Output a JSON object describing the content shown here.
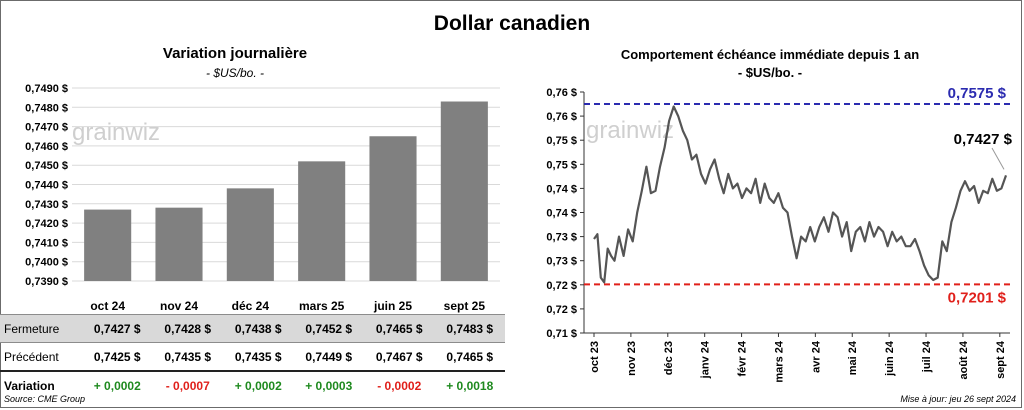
{
  "page_title": "Dollar canadien",
  "source": "Source: CME Group",
  "updated": "Mise à jour: jeu 26 sept 2024",
  "watermark": "grainwiz",
  "chart_data": [
    {
      "type": "bar",
      "title": "Variation  journalière",
      "subtitle": "- $US/bo. -",
      "categories": [
        "oct 24",
        "nov 24",
        "déc 24",
        "mars 25",
        "juin 25",
        "sept 25"
      ],
      "values": [
        0.7427,
        0.7428,
        0.7438,
        0.7452,
        0.7465,
        0.7483
      ],
      "ylim": [
        0.739,
        0.749
      ],
      "yticks": [
        "0,7390 $",
        "0,7400 $",
        "0,7410 $",
        "0,7420 $",
        "0,7430 $",
        "0,7440 $",
        "0,7450 $",
        "0,7460 $",
        "0,7470 $",
        "0,7480 $",
        "0,7490 $"
      ],
      "grid": true,
      "bar_color": "#808080"
    },
    {
      "type": "line",
      "title": "Comportement échéance immédiate depuis 1 an",
      "subtitle": "- $US/bo. -",
      "ylim": [
        0.71,
        0.76
      ],
      "yticks": [
        "0,71 $",
        "0,72 $",
        "0,72 $",
        "0,73 $",
        "0,73 $",
        "0,74 $",
        "0,74 $",
        "0,75 $",
        "0,75 $",
        "0,76 $",
        "0,76 $"
      ],
      "xticks": [
        "oct 23",
        "nov 23",
        "déc 23",
        "janv 24",
        "févr 24",
        "mars 24",
        "avr 24",
        "mai 24",
        "juin 24",
        "juil 24",
        "août 24",
        "sept 24"
      ],
      "x": [
        0,
        3,
        6,
        9,
        12,
        15,
        18,
        22,
        26,
        30,
        34,
        38,
        42,
        46,
        50,
        54,
        58,
        62,
        66,
        70,
        74,
        78,
        82,
        86,
        90,
        94,
        98,
        102,
        106,
        110,
        114,
        118,
        122,
        126,
        130,
        134,
        138,
        142,
        146,
        150,
        154,
        158,
        162,
        166,
        170,
        174,
        178,
        182,
        186,
        190,
        194,
        198,
        202,
        206,
        210,
        214,
        218,
        222,
        226,
        230,
        234,
        238,
        242,
        246,
        250,
        254,
        258,
        262,
        266,
        270,
        274,
        278,
        282,
        286,
        290,
        294,
        298,
        302,
        306,
        310,
        314,
        318,
        322,
        326,
        330,
        334,
        338,
        342,
        346,
        350,
        354,
        358,
        362
      ],
      "values": [
        0.7295,
        0.7305,
        0.7215,
        0.7205,
        0.7275,
        0.726,
        0.725,
        0.73,
        0.726,
        0.7315,
        0.729,
        0.735,
        0.7395,
        0.7445,
        0.739,
        0.7395,
        0.7445,
        0.7485,
        0.754,
        0.757,
        0.755,
        0.752,
        0.75,
        0.746,
        0.747,
        0.743,
        0.741,
        0.744,
        0.746,
        0.742,
        0.739,
        0.743,
        0.74,
        0.741,
        0.738,
        0.74,
        0.739,
        0.742,
        0.737,
        0.741,
        0.738,
        0.737,
        0.739,
        0.736,
        0.735,
        0.73,
        0.7255,
        0.73,
        0.729,
        0.732,
        0.729,
        0.732,
        0.734,
        0.731,
        0.735,
        0.734,
        0.73,
        0.733,
        0.727,
        0.731,
        0.732,
        0.729,
        0.733,
        0.73,
        0.732,
        0.731,
        0.728,
        0.731,
        0.729,
        0.73,
        0.728,
        0.728,
        0.7295,
        0.727,
        0.724,
        0.722,
        0.721,
        0.7215,
        0.729,
        0.727,
        0.733,
        0.736,
        0.7395,
        0.7415,
        0.7395,
        0.7405,
        0.737,
        0.7395,
        0.739,
        0.742,
        0.7395,
        0.74,
        0.7427
      ],
      "hlines": [
        {
          "value": 0.7575,
          "label": "0,7575 $",
          "color": "#2b2bb0"
        },
        {
          "value": 0.7201,
          "label": "0,7201 $",
          "color": "#e0201b"
        }
      ],
      "last_label": "0,7427 $",
      "line_color": "#555555"
    }
  ],
  "table": {
    "rows": [
      {
        "label": "Fermeture",
        "values": [
          "0,7427  $",
          "0,7428  $",
          "0,7438  $",
          "0,7452  $",
          "0,7465  $",
          "0,7483  $"
        ]
      },
      {
        "label": "Précédent",
        "values": [
          "0,7425  $",
          "0,7435  $",
          "0,7435  $",
          "0,7449  $",
          "0,7467  $",
          "0,7465  $"
        ]
      },
      {
        "label": "Variation",
        "values": [
          "+ 0,0002",
          "- 0,0007",
          "+ 0,0002",
          "+ 0,0003",
          "- 0,0002",
          "+ 0,0018"
        ],
        "signs": [
          "pos",
          "neg",
          "pos",
          "pos",
          "neg",
          "pos"
        ]
      }
    ]
  }
}
